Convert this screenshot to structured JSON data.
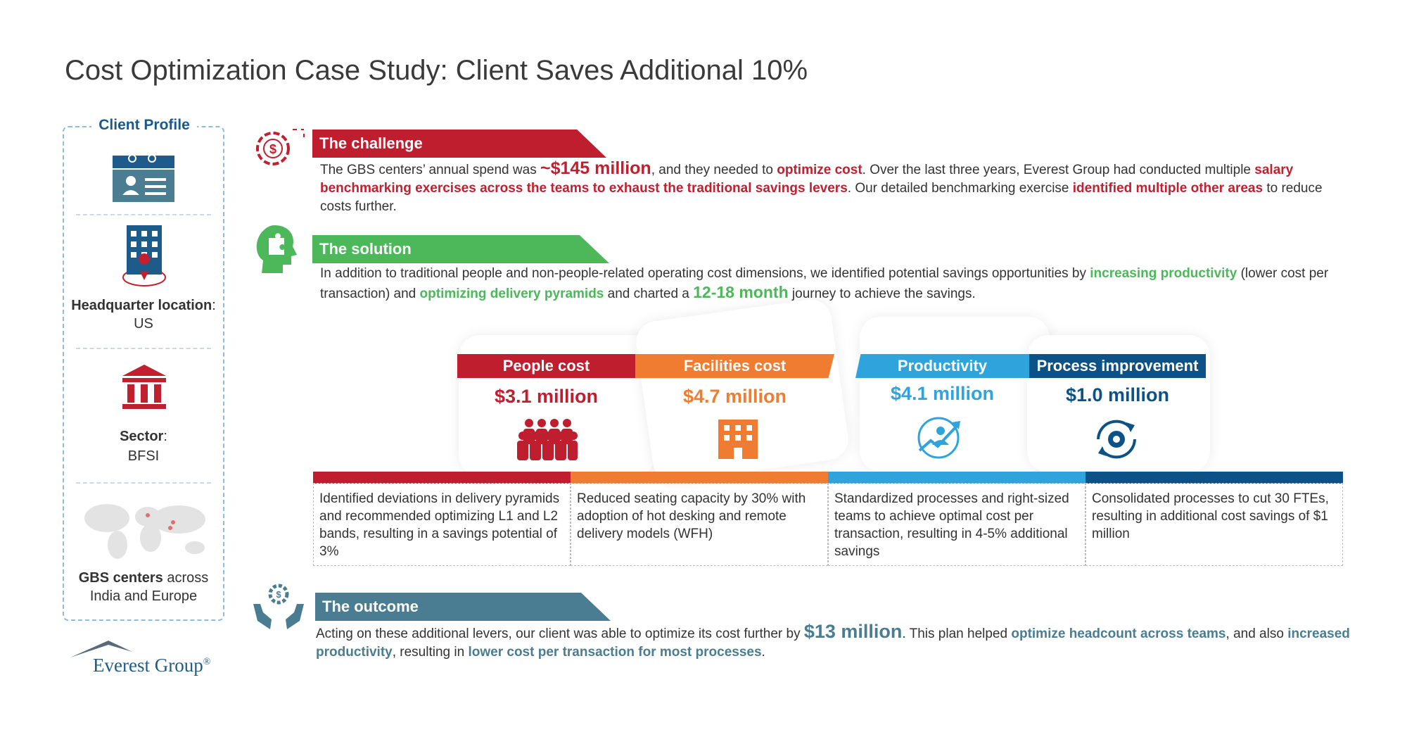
{
  "title": "Cost Optimization Case Study: Client Saves Additional 10%",
  "client_profile": {
    "heading": "Client Profile",
    "headquarter": [
      "Headquarter location",
      ": US"
    ],
    "sector": [
      "Sector",
      ":",
      "BFSI"
    ],
    "centers": [
      "GBS centers",
      " across India and Europe"
    ]
  },
  "logo": {
    "name": "Everest Group",
    "mark": "®"
  },
  "challenge": {
    "heading": "The challenge",
    "text": [
      "The GBS centers’ annual spend was ",
      "~$145 million",
      ", and they needed to ",
      "optimize cost",
      ". Over the last three years, Everest Group had conducted multiple ",
      "salary benchmarking exercises across the teams to exhaust the traditional savings levers",
      ". Our detailed benchmarking exercise ",
      "identified multiple other areas",
      " to reduce costs further."
    ]
  },
  "solution": {
    "heading": "The solution",
    "text": [
      "In addition to traditional people and non-people-related operating cost dimensions, we identified potential savings opportunities by ",
      "increasing productivity",
      " (lower cost per transaction) and ",
      "optimizing delivery pyramids",
      " and charted a ",
      "12-18 month",
      " journey to achieve the savings."
    ]
  },
  "levers": [
    {
      "name": "People cost",
      "value": "$3.1 million",
      "description": "Identified deviations in delivery pyramids and recommended optimizing L1 and L2 bands, resulting in a savings potential of 3%",
      "color": "#bf1e2e"
    },
    {
      "name": "Facilities cost",
      "value": "$4.7 million",
      "description": "Reduced seating capacity by 30% with adoption of hot desking and remote delivery models (WFH)",
      "color": "#f07c31"
    },
    {
      "name": "Productivity",
      "value": "$4.1 million",
      "description": "Standardized processes and right-sized teams to achieve optimal cost per transaction, resulting in 4-5% additional savings",
      "color": "#2ea3dc"
    },
    {
      "name": "Process improvement",
      "value": "$1.0 million",
      "description": "Consolidated processes to cut 30 FTEs, resulting in additional cost savings of $1 million",
      "color": "#0d5286"
    }
  ],
  "outcome": {
    "heading": "The outcome",
    "text": [
      "Acting on these additional levers, our client was able to optimize its cost further by ",
      "$13 million",
      ". This plan helped ",
      "optimize headcount across teams",
      ", and also ",
      "increased productivity",
      ", resulting in ",
      "lower cost per transaction for most processes",
      "."
    ]
  }
}
